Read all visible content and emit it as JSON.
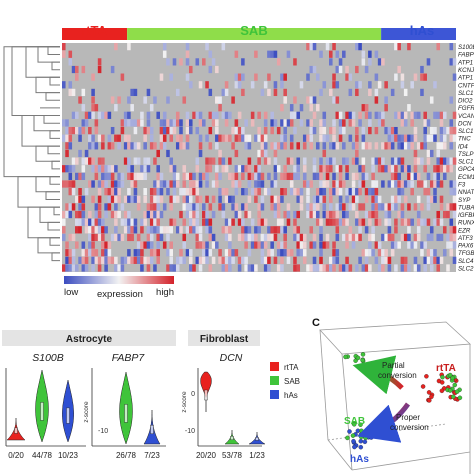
{
  "heatmap": {
    "groups": [
      {
        "label": "rtTA",
        "color": "#e8221f",
        "cells": 20
      },
      {
        "label": "SAB",
        "color": "#8fdd4a",
        "cells": 78
      },
      {
        "label": "hAs",
        "color": "#3d56d6",
        "cells": 23
      }
    ],
    "genes": [
      "S100B",
      "FABP7",
      "ATP1",
      "KCNJ",
      "ATP1",
      "CNTF",
      "SLC1",
      "DIO2",
      "FGFR",
      "VCAN",
      "DCN",
      "SLC1",
      "TNC",
      "ID4",
      "TSLP",
      "SLC1",
      "GPC4",
      "ECM1",
      "F3",
      "NNAT",
      "SYP",
      "TUBA",
      "IGFBP",
      "RUNX",
      "EZR",
      "ATF3",
      "PAX6",
      "TFGB",
      "SLC4",
      "SLC2"
    ],
    "legend": {
      "low": "low",
      "title": "expression",
      "high": "high",
      "colors": [
        "#3b4cc0",
        "#f2f2f2",
        "#d4222a"
      ]
    }
  },
  "panel_b": {
    "violins": [
      {
        "group": "Astrocyte",
        "gene": "S100B",
        "counts": [
          "0/20",
          "44/78",
          "10/23"
        ]
      },
      {
        "group": "Astrocyte",
        "gene": "FABP7",
        "counts": [
          "26/78",
          "7/23"
        ]
      },
      {
        "group": "Fibroblast",
        "gene": "DCN",
        "counts": [
          "20/20",
          "53/78",
          "1/23"
        ]
      }
    ],
    "headers": [
      "Astrocyte",
      "Fibroblast"
    ],
    "ylabel": "z-score",
    "ticks": [
      "0",
      "-10"
    ],
    "legend": [
      {
        "label": "rtTA",
        "color": "#e8221f"
      },
      {
        "label": "SAB",
        "color": "#3fc43a"
      },
      {
        "label": "hAs",
        "color": "#2f4fd2"
      }
    ]
  },
  "panel_c": {
    "letter": "C",
    "labels": {
      "rtta": "rtTA",
      "sab": "SAB",
      "has": "hAs"
    },
    "arrows": [
      {
        "line1": "Partial",
        "line2": "conversion"
      },
      {
        "line1": "Proper",
        "line2": "conversion"
      }
    ]
  }
}
